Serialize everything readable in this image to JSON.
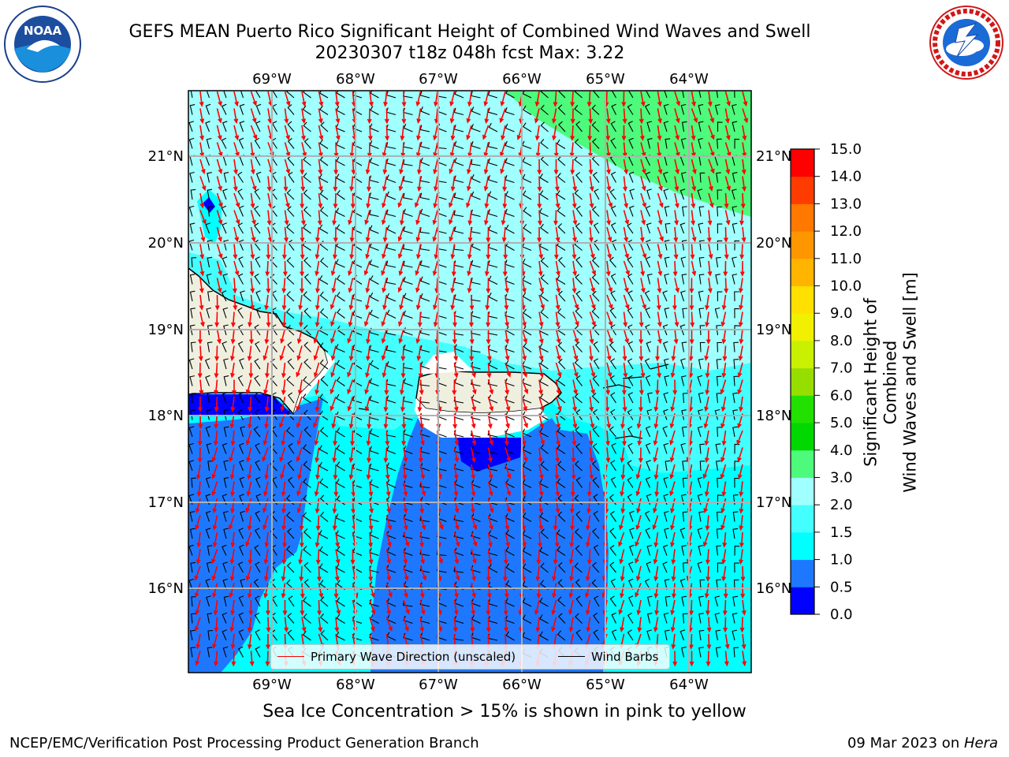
{
  "title": {
    "line1": "GEFS MEAN Puerto Rico Significant Height of Combined Wind Waves and Swell",
    "line2": "20230307 t18z 048h fcst   Max: 3.22"
  },
  "logos": {
    "left": "noaa-logo",
    "right": "national-weather-service-logo",
    "left_text": "NOAA"
  },
  "chart_data": {
    "type": "heatmap",
    "title": "GEFS MEAN Puerto Rico Significant Height of Combined Wind Waves and Swell",
    "subtitle": "20230307 t18z 048h fcst   Max: 3.22",
    "x_ticks": [
      "69°W",
      "68°W",
      "67°W",
      "66°W",
      "65°W",
      "64°W"
    ],
    "y_ticks": [
      "21°N",
      "20°N",
      "19°N",
      "18°N",
      "17°N",
      "16°N"
    ],
    "x_range": [
      -69.95,
      -63.35
    ],
    "y_range": [
      15.0,
      21.75
    ],
    "colorbar": {
      "label": [
        "Significant Height of Combined",
        "Wind Waves and Swell [m]"
      ],
      "ticks": [
        "15.0",
        "14.0",
        "13.0",
        "12.0",
        "11.0",
        "10.0",
        "9.0",
        "8.0",
        "7.0",
        "6.0",
        "5.0",
        "4.0",
        "3.0",
        "2.0",
        "1.5",
        "1.0",
        "0.5",
        "0.0"
      ],
      "levels": [
        0.0,
        0.5,
        1.0,
        1.5,
        2.0,
        3.0,
        4.0,
        5.0,
        6.0,
        7.0,
        8.0,
        9.0,
        10.0,
        11.0,
        12.0,
        13.0,
        14.0,
        15.0
      ],
      "colors": [
        "#0000ff",
        "#1e78ff",
        "#00ffff",
        "#44ffff",
        "#a0ffff",
        "#4dfa7b",
        "#00d800",
        "#22e000",
        "#96de00",
        "#c8f000",
        "#f0f000",
        "#ffe000",
        "#ffb400",
        "#ff9600",
        "#ff7800",
        "#ff3c00",
        "#ff0000"
      ]
    },
    "max_value": 3.22,
    "legend": [
      "Primary Wave Direction (unscaled)",
      "Wind Barbs"
    ],
    "legend_placement": "lower-center",
    "grid": true
  },
  "colors": {
    "land": "#efefe0",
    "wave_arrow": "#ff0000",
    "wind_barb": "#000000"
  },
  "note": "Sea Ice Concentration > 15% is shown in pink to yellow",
  "footer": {
    "left": "NCEP/EMC/Verification Post Processing Product Generation Branch",
    "date": "09 Mar 2023 on ",
    "system": "Hera"
  }
}
